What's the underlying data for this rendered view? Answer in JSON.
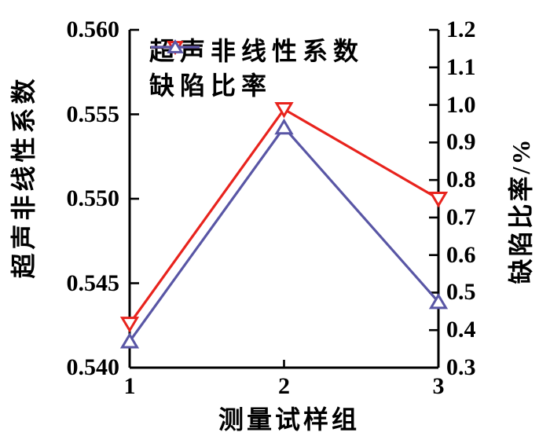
{
  "chart_data": {
    "type": "line",
    "title": "",
    "xlabel": "测量试样组",
    "x": [
      1,
      2,
      3
    ],
    "x_ticks": [
      "1",
      "2",
      "3"
    ],
    "left_axis": {
      "label": "超声非线性系数",
      "min": 0.54,
      "max": 0.56,
      "ticks": [
        "0.560",
        "0.555",
        "0.550",
        "0.545",
        "0.540"
      ]
    },
    "right_axis": {
      "label": "缺陷比率/%",
      "min": 0.3,
      "max": 1.2,
      "ticks": [
        "1.2",
        "1.1",
        "1.0",
        "0.9",
        "0.8",
        "0.7",
        "0.6",
        "0.5",
        "0.4",
        "0.3"
      ]
    },
    "series": [
      {
        "name": "超声非线性系数",
        "axis": "left",
        "color": "#e8231d",
        "marker": "triangle-down",
        "values": [
          0.5426,
          0.5553,
          0.55
        ]
      },
      {
        "name": "缺陷比率",
        "axis": "right",
        "color": "#5956a5",
        "marker": "triangle-up",
        "values": [
          0.37,
          0.94,
          0.475
        ]
      }
    ],
    "legend_position": "top-left",
    "grid": false,
    "axis_color": "#000000",
    "background_color": "#ffffff"
  }
}
